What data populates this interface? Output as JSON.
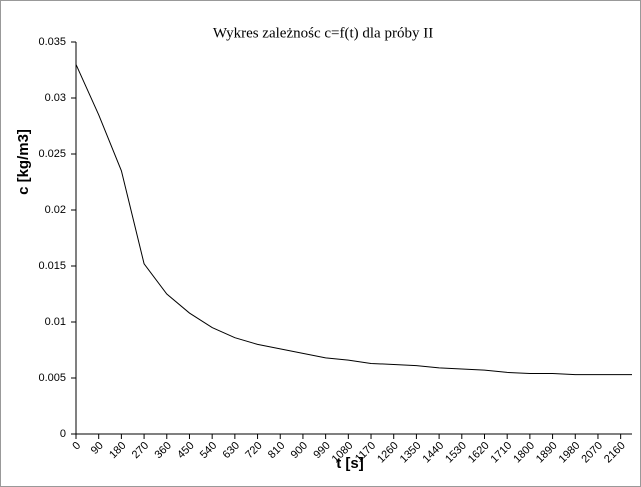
{
  "chart_data": {
    "type": "line",
    "title": "Wykres zależnośc c=f(t) dla próby II",
    "x_label": "t [s]",
    "y_label": "c [kg/m3]",
    "x": [
      0,
      90,
      180,
      270,
      360,
      450,
      540,
      630,
      720,
      810,
      900,
      990,
      1080,
      1170,
      1260,
      1350,
      1440,
      1530,
      1620,
      1710,
      1800,
      1890,
      1980,
      2070,
      2160,
      2205
    ],
    "values": [
      0.033,
      0.0285,
      0.0235,
      0.0152,
      0.0125,
      0.0108,
      0.0095,
      0.0086,
      0.008,
      0.0076,
      0.0072,
      0.0068,
      0.0066,
      0.0063,
      0.0062,
      0.0061,
      0.0059,
      0.0058,
      0.0057,
      0.0055,
      0.0054,
      0.0054,
      0.0053,
      0.0053,
      0.0053,
      0.0053
    ],
    "color": "#000000",
    "xlim": [
      0,
      2205
    ],
    "xticks": [
      0,
      90,
      180,
      270,
      360,
      450,
      540,
      630,
      720,
      810,
      900,
      990,
      1080,
      1170,
      1260,
      1350,
      1440,
      1530,
      1620,
      1710,
      1800,
      1890,
      1980,
      2070,
      2160
    ],
    "ylim": [
      0,
      0.035
    ],
    "yticks": [
      0,
      0.005,
      0.01,
      0.015,
      0.02,
      0.025,
      0.03,
      0.035
    ],
    "grid": false
  }
}
